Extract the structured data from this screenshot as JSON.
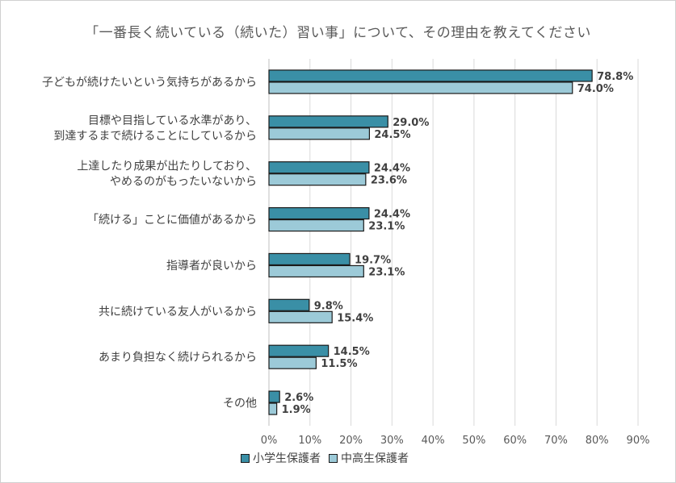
{
  "chart_data": {
    "type": "bar",
    "orientation": "horizontal",
    "title": "「一番長く続いている（続いた）習い事」について、その理由を教えてください",
    "categories": [
      "子どもが続けたいという気持ちがあるから",
      "目標や目指している水準があり、\n到達するまで続けることにしているから",
      "上達したり成果が出たりしており、\nやめるのがもったいないから",
      "「続ける」ことに価値があるから",
      "指導者が良いから",
      "共に続けている友人がいるから",
      "あまり負担なく続けられるから",
      "その他"
    ],
    "series": [
      {
        "name": "小学生保護者",
        "color": "#3a8fa6",
        "values": [
          78.8,
          29.0,
          24.4,
          24.4,
          19.7,
          9.8,
          14.5,
          2.6
        ],
        "labels": [
          "78.8%",
          "29.0%",
          "24.4%",
          "24.4%",
          "19.7%",
          "9.8%",
          "14.5%",
          "2.6%"
        ]
      },
      {
        "name": "中高生保護者",
        "color": "#9ccad8",
        "values": [
          74.0,
          24.5,
          23.6,
          23.1,
          23.1,
          15.4,
          11.5,
          1.9
        ],
        "labels": [
          "74.0%",
          "24.5%",
          "23.6%",
          "23.1%",
          "23.1%",
          "15.4%",
          "11.5%",
          "1.9%"
        ]
      }
    ],
    "xlim": [
      0,
      90
    ],
    "xticks": [
      "0%",
      "10%",
      "20%",
      "30%",
      "40%",
      "50%",
      "60%",
      "70%",
      "80%",
      "90%"
    ],
    "grid": true,
    "legend_position": "bottom"
  }
}
